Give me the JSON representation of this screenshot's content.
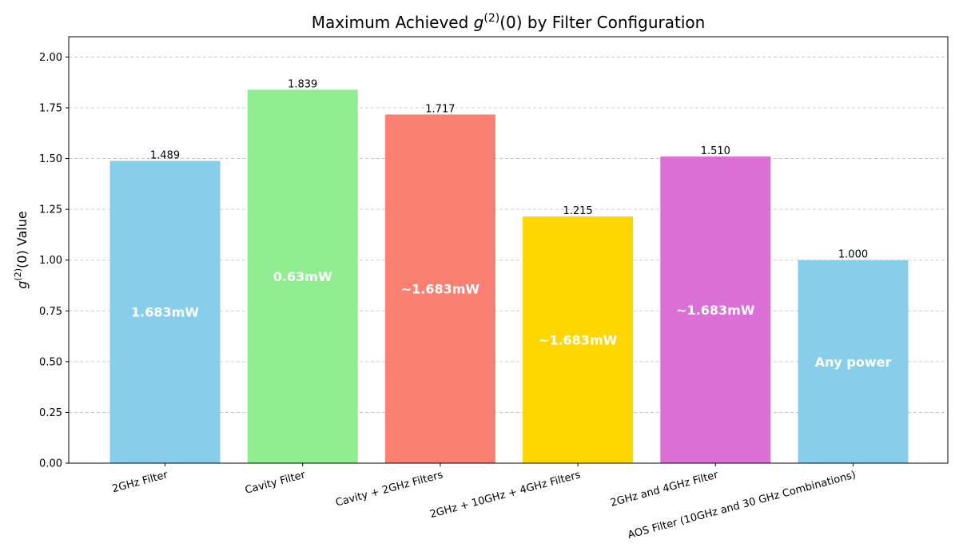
{
  "chart_data": {
    "type": "bar",
    "title": "Maximum Achieved g(2)(0) by Filter Configuration",
    "xlabel": "",
    "ylabel": "g(2)(0) Value",
    "ylim": [
      0,
      2.1
    ],
    "yticks": [
      "0.00",
      "0.25",
      "0.50",
      "0.75",
      "1.00",
      "1.25",
      "1.50",
      "1.75",
      "2.00"
    ],
    "grid": true,
    "categories": [
      "2GHz Filter",
      "Cavity Filter",
      "Cavity + 2GHz Filters",
      "2GHz + 10GHz + 4GHz Filters",
      "2GHz and 4GHz Filter",
      "AOS Filter (10GHz and 30 GHz Combinations)"
    ],
    "values": [
      1.489,
      1.839,
      1.717,
      1.215,
      1.51,
      1.0
    ],
    "value_labels": [
      "1.489",
      "1.839",
      "1.717",
      "1.215",
      "1.510",
      "1.000"
    ],
    "power_labels": [
      "1.683mW",
      "0.63mW",
      "~1.683mW",
      "~1.683mW",
      "~1.683mW",
      "Any power"
    ],
    "colors": [
      "#87CEEB",
      "#90EE90",
      "#FA8072",
      "#FFD700",
      "#DA70D6",
      "#87CEEB"
    ]
  }
}
